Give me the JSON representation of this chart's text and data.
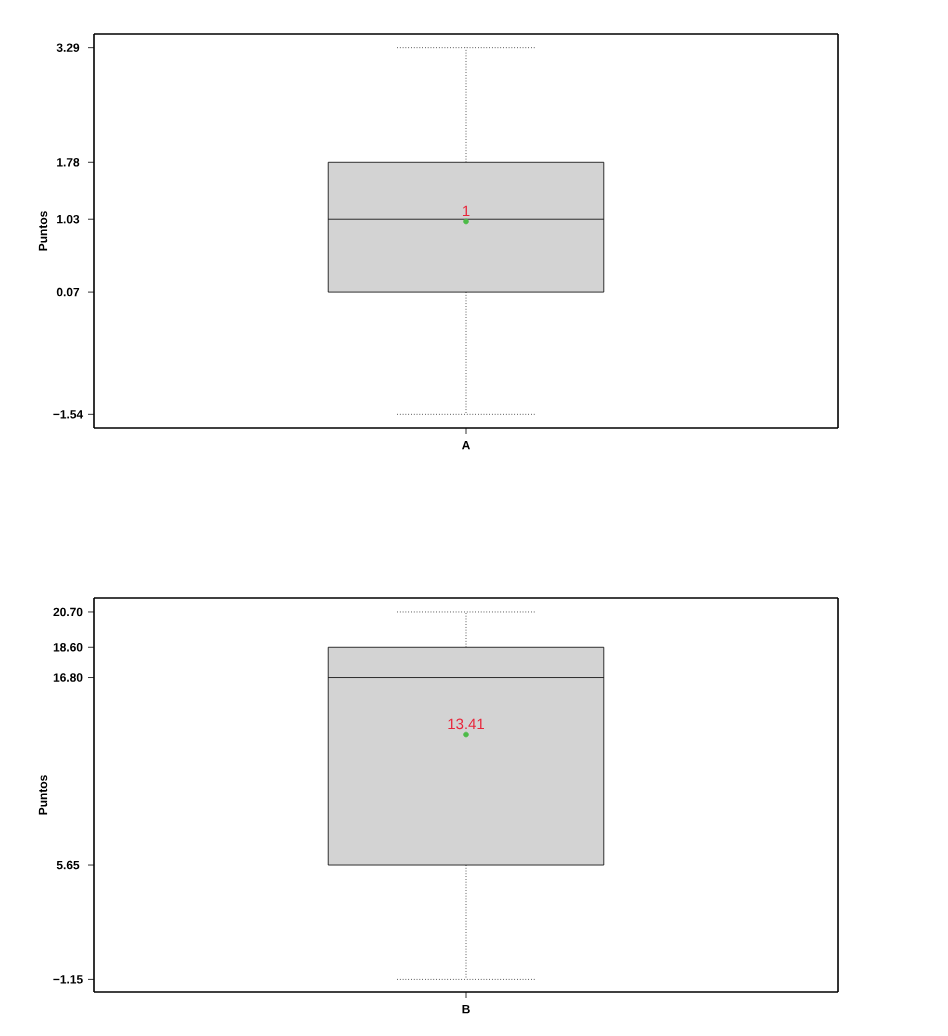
{
  "chart_data": [
    {
      "type": "box",
      "categories": [
        "A"
      ],
      "ylabel": "Puntos",
      "color": "#d3d3d3",
      "ylim": [
        -1.72,
        3.47
      ],
      "yticks": [
        {
          "value": -1.54,
          "label": "−1.54"
        },
        {
          "value": 0.07,
          "label": "0.07"
        },
        {
          "value": 1.03,
          "label": "1.03"
        },
        {
          "value": 1.78,
          "label": "1.78"
        },
        {
          "value": 3.29,
          "label": "3.29"
        }
      ],
      "grid": false,
      "boxes": [
        {
          "low": -1.54,
          "q1": 0.07,
          "median": 1.03,
          "q3": 1.78,
          "high": 3.29,
          "mean": 1
        }
      ],
      "annotations": [
        "1"
      ]
    },
    {
      "type": "box",
      "categories": [
        "B"
      ],
      "ylabel": "Puntos",
      "color": "#d3d3d3",
      "ylim": [
        -1.9,
        21.53
      ],
      "yticks": [
        {
          "value": -1.15,
          "label": "−1.15"
        },
        {
          "value": 5.65,
          "label": "5.65"
        },
        {
          "value": 16.8,
          "label": "16.80"
        },
        {
          "value": 18.6,
          "label": "18.60"
        },
        {
          "value": 20.7,
          "label": "20.70"
        }
      ],
      "grid": false,
      "boxes": [
        {
          "low": -1.15,
          "q1": 5.65,
          "median": 16.8,
          "q3": 18.6,
          "high": 20.7,
          "mean": 13.41
        }
      ],
      "annotations": [
        "13.41"
      ]
    }
  ]
}
